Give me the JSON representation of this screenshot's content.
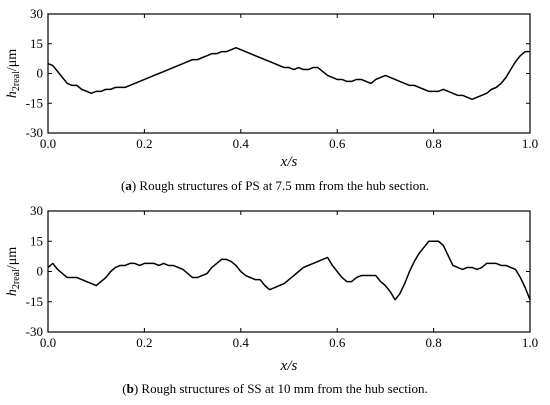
{
  "chart_data": [
    {
      "type": "line",
      "panel_label": "a",
      "caption": "Rough structures of PS at 7.5 mm from the hub section.",
      "xlabel": "x/s",
      "ylabel_main": "h",
      "ylabel_sub": "2real",
      "ylabel_unit": "/μm",
      "xlim": [
        0.0,
        1.0
      ],
      "ylim": [
        -30,
        30
      ],
      "xticks": [
        "0.0",
        "0.2",
        "0.4",
        "0.6",
        "0.8",
        "1.0"
      ],
      "yticks": [
        "30",
        "15",
        "0",
        "-15",
        "-30"
      ],
      "series": [
        {
          "x": [
            0.0,
            0.01,
            0.02,
            0.03,
            0.04,
            0.05,
            0.06,
            0.07,
            0.08,
            0.09,
            0.1,
            0.11,
            0.12,
            0.13,
            0.14,
            0.15,
            0.16,
            0.17,
            0.18,
            0.19,
            0.2,
            0.21,
            0.22,
            0.23,
            0.24,
            0.25,
            0.26,
            0.27,
            0.28,
            0.29,
            0.3,
            0.31,
            0.32,
            0.33,
            0.34,
            0.35,
            0.36,
            0.37,
            0.38,
            0.39,
            0.4,
            0.41,
            0.42,
            0.43,
            0.44,
            0.45,
            0.46,
            0.47,
            0.48,
            0.49,
            0.5,
            0.51,
            0.52,
            0.53,
            0.54,
            0.55,
            0.56,
            0.57,
            0.58,
            0.59,
            0.6,
            0.61,
            0.62,
            0.63,
            0.64,
            0.65,
            0.66,
            0.67,
            0.68,
            0.69,
            0.7,
            0.71,
            0.72,
            0.73,
            0.74,
            0.75,
            0.76,
            0.77,
            0.78,
            0.79,
            0.8,
            0.81,
            0.82,
            0.83,
            0.84,
            0.85,
            0.86,
            0.87,
            0.88,
            0.89,
            0.9,
            0.91,
            0.92,
            0.93,
            0.94,
            0.95,
            0.96,
            0.97,
            0.98,
            0.99,
            1.0
          ],
          "y": [
            5,
            4,
            1,
            -2,
            -5,
            -6,
            -6,
            -8,
            -9,
            -10,
            -9,
            -9,
            -8,
            -8,
            -7,
            -7,
            -7,
            -6,
            -5,
            -4,
            -3,
            -2,
            -1,
            0,
            1,
            2,
            3,
            4,
            5,
            6,
            7,
            7,
            8,
            9,
            10,
            10,
            11,
            11,
            12,
            13,
            12,
            11,
            10,
            9,
            8,
            7,
            6,
            5,
            4,
            3,
            3,
            2,
            3,
            2,
            2,
            3,
            3,
            1,
            -1,
            -2,
            -3,
            -3,
            -4,
            -4,
            -3,
            -3,
            -4,
            -5,
            -3,
            -2,
            -1,
            -2,
            -3,
            -4,
            -5,
            -6,
            -6,
            -7,
            -8,
            -9,
            -9,
            -9,
            -8,
            -9,
            -10,
            -11,
            -11,
            -12,
            -13,
            -12,
            -11,
            -10,
            -8,
            -7,
            -5,
            -2,
            2,
            6,
            9,
            11,
            11
          ]
        }
      ]
    },
    {
      "type": "line",
      "panel_label": "b",
      "caption": "Rough structures of SS at 10 mm from the hub section.",
      "xlabel": "x/s",
      "ylabel_main": "h",
      "ylabel_sub": "2real",
      "ylabel_unit": "/μm",
      "xlim": [
        0.0,
        1.0
      ],
      "ylim": [
        -30,
        30
      ],
      "xticks": [
        "0.0",
        "0.2",
        "0.4",
        "0.6",
        "0.8",
        "1.0"
      ],
      "yticks": [
        "30",
        "15",
        "0",
        "-15",
        "-30"
      ],
      "series": [
        {
          "x": [
            0.0,
            0.01,
            0.02,
            0.03,
            0.04,
            0.05,
            0.06,
            0.07,
            0.08,
            0.09,
            0.1,
            0.11,
            0.12,
            0.13,
            0.14,
            0.15,
            0.16,
            0.17,
            0.18,
            0.19,
            0.2,
            0.21,
            0.22,
            0.23,
            0.24,
            0.25,
            0.26,
            0.27,
            0.28,
            0.29,
            0.3,
            0.31,
            0.32,
            0.33,
            0.34,
            0.35,
            0.36,
            0.37,
            0.38,
            0.39,
            0.4,
            0.41,
            0.42,
            0.43,
            0.44,
            0.45,
            0.46,
            0.47,
            0.48,
            0.49,
            0.5,
            0.51,
            0.52,
            0.53,
            0.54,
            0.55,
            0.56,
            0.57,
            0.58,
            0.59,
            0.6,
            0.61,
            0.62,
            0.63,
            0.64,
            0.65,
            0.66,
            0.67,
            0.68,
            0.69,
            0.7,
            0.71,
            0.72,
            0.73,
            0.74,
            0.75,
            0.76,
            0.77,
            0.78,
            0.79,
            0.8,
            0.81,
            0.82,
            0.83,
            0.84,
            0.85,
            0.86,
            0.87,
            0.88,
            0.89,
            0.9,
            0.91,
            0.92,
            0.93,
            0.94,
            0.95,
            0.96,
            0.97,
            0.98,
            0.99,
            1.0
          ],
          "y": [
            2,
            4,
            1,
            -1,
            -3,
            -3,
            -3,
            -4,
            -5,
            -6,
            -7,
            -5,
            -3,
            0,
            2,
            3,
            3,
            4,
            4,
            3,
            4,
            4,
            4,
            3,
            4,
            3,
            3,
            2,
            1,
            -1,
            -3,
            -3,
            -2,
            -1,
            2,
            4,
            6,
            6,
            5,
            3,
            0,
            -2,
            -3,
            -4,
            -4,
            -7,
            -9,
            -8,
            -7,
            -6,
            -4,
            -2,
            0,
            2,
            3,
            4,
            5,
            6,
            7,
            3,
            0,
            -3,
            -5,
            -5,
            -3,
            -2,
            -2,
            -2,
            -2,
            -5,
            -7,
            -10,
            -14,
            -11,
            -6,
            0,
            5,
            9,
            12,
            15,
            15,
            15,
            13,
            8,
            3,
            2,
            1,
            2,
            2,
            1,
            2,
            4,
            4,
            4,
            3,
            3,
            2,
            1,
            -3,
            -8,
            -14
          ]
        }
      ]
    }
  ]
}
